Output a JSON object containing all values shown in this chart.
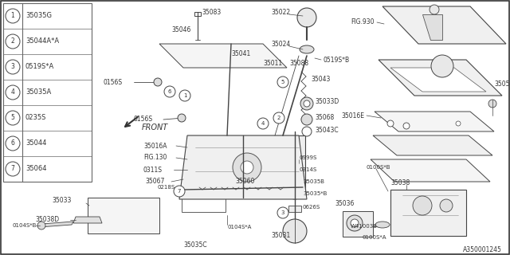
{
  "bg_color": "#ffffff",
  "part_number": "A350001245",
  "legend_items": [
    {
      "num": 1,
      "code": "35035G"
    },
    {
      "num": 2,
      "code": "35044A*A"
    },
    {
      "num": 3,
      "code": "0519S*A"
    },
    {
      "num": 4,
      "code": "35035A"
    },
    {
      "num": 5,
      "code": "0235S"
    },
    {
      "num": 6,
      "code": "35044"
    },
    {
      "num": 7,
      "code": "35064"
    }
  ],
  "line_color": "#555555",
  "text_color": "#333333"
}
